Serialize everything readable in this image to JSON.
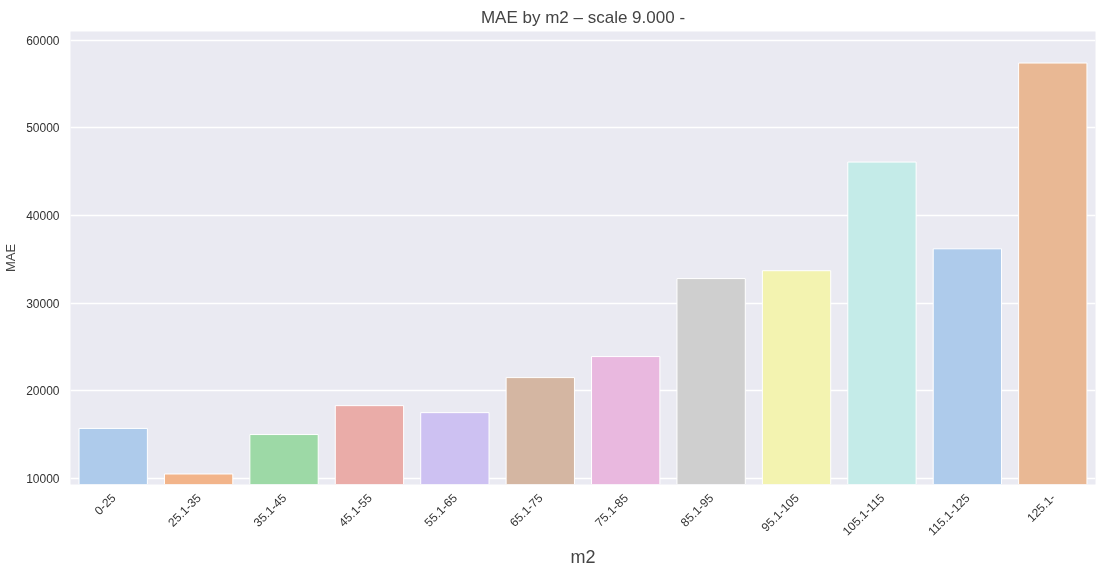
{
  "chart_data": {
    "type": "bar",
    "title": "MAE by m2 – scale 9.000 -",
    "xlabel": "m2",
    "ylabel": "MAE",
    "categories": [
      "0-25",
      "25.1-35",
      "35.1-45",
      "45.1-55",
      "55.1-65",
      "65.1-75",
      "75.1-85",
      "85.1-95",
      "95.1-105",
      "105.1-115",
      "115.1-125",
      "125.1-"
    ],
    "values": [
      15700,
      10500,
      15000,
      18300,
      17500,
      21500,
      23900,
      32800,
      33700,
      46100,
      36200,
      57400
    ],
    "colors": [
      "#aecbeb",
      "#f2b48a",
      "#9dd9a6",
      "#eaaca8",
      "#cdc1f2",
      "#d4b6a2",
      "#e9b8df",
      "#cfcfcf",
      "#f3f3b0",
      "#c4ebe8",
      "#aecbeb",
      "#e9b894"
    ],
    "ylim": [
      9300,
      61000
    ],
    "yticks": [
      10000,
      20000,
      30000,
      40000,
      50000,
      60000
    ],
    "grid": "y"
  }
}
